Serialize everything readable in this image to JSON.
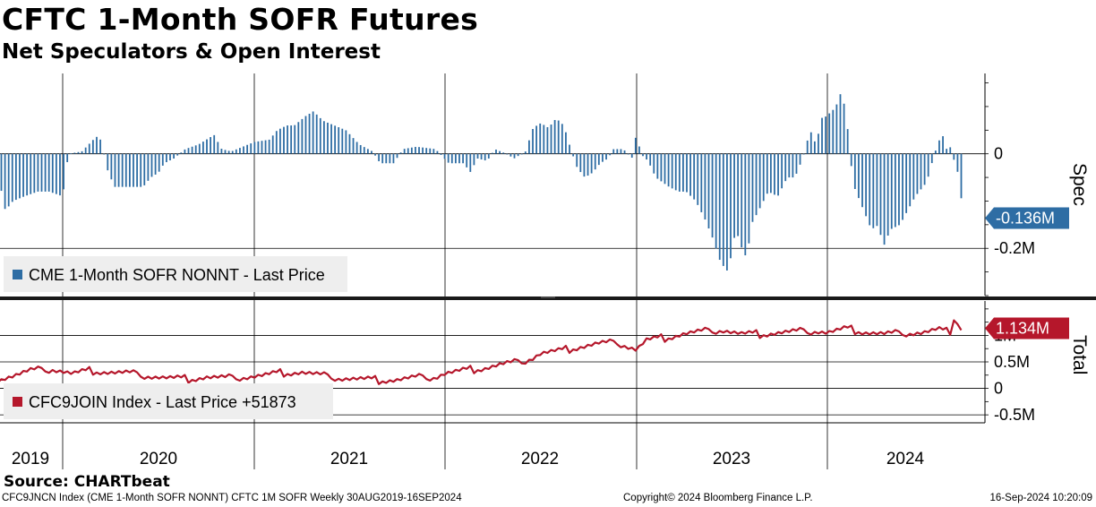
{
  "header": {
    "title": "CFTC 1-Month SOFR Futures",
    "subtitle": "Net Speculators & Open Interest"
  },
  "colors": {
    "spec_bar": "#2e6da4",
    "total_line": "#b5172b",
    "axis": "#000000",
    "legend_bg": "#eeeeee"
  },
  "source": "Source: CHARTbeat",
  "footer": {
    "left": "CFC9JNCN Index (CME 1-Month SOFR NONNT) CFTC 1M SOFR  Weekly 30AUG2019-16SEP2024",
    "middle": "Copyright© 2024 Bloomberg Finance L.P.",
    "right": "16-Sep-2024 10:20:09"
  },
  "chart_data": [
    {
      "type": "bar",
      "panel": "top",
      "axis_title": "Spec",
      "legend": "CME 1-Month SOFR NONNT - Last Price",
      "y_ticks": [
        {
          "value": 0,
          "label": "0"
        },
        {
          "value": -0.2,
          "label": "-0.2M"
        }
      ],
      "ylim": [
        -0.3,
        0.17
      ],
      "last_value_label": "-0.136M",
      "last_value": -0.136,
      "x_start": 2019.66,
      "x_end": 2024.71,
      "frequency": "weekly",
      "key_points": [
        [
          2019.66,
          -0.04
        ],
        [
          2019.7,
          -0.12
        ],
        [
          2019.74,
          -0.1
        ],
        [
          2019.8,
          -0.09
        ],
        [
          2019.87,
          -0.08
        ],
        [
          2019.93,
          -0.08
        ],
        [
          2020.0,
          -0.09
        ],
        [
          2020.03,
          0.0
        ],
        [
          2020.1,
          0.005
        ],
        [
          2020.16,
          0.03
        ],
        [
          2020.19,
          0.04
        ],
        [
          2020.21,
          0.01
        ],
        [
          2020.23,
          -0.03
        ],
        [
          2020.27,
          -0.07
        ],
        [
          2020.35,
          -0.07
        ],
        [
          2020.42,
          -0.07
        ],
        [
          2020.46,
          -0.05
        ],
        [
          2020.5,
          -0.04
        ],
        [
          2020.53,
          -0.02
        ],
        [
          2020.58,
          -0.01
        ],
        [
          2020.64,
          0.01
        ],
        [
          2020.71,
          0.02
        ],
        [
          2020.75,
          0.03
        ],
        [
          2020.79,
          0.04
        ],
        [
          2020.83,
          0.01
        ],
        [
          2020.88,
          0.005
        ],
        [
          2021.0,
          0.025
        ],
        [
          2021.08,
          0.03
        ],
        [
          2021.12,
          0.05
        ],
        [
          2021.17,
          0.06
        ],
        [
          2021.21,
          0.06
        ],
        [
          2021.27,
          0.08
        ],
        [
          2021.31,
          0.09
        ],
        [
          2021.36,
          0.07
        ],
        [
          2021.42,
          0.06
        ],
        [
          2021.48,
          0.05
        ],
        [
          2021.55,
          0.02
        ],
        [
          2021.62,
          0.005
        ],
        [
          2021.66,
          -0.02
        ],
        [
          2021.73,
          -0.02
        ],
        [
          2021.78,
          0.01
        ],
        [
          2021.85,
          0.015
        ],
        [
          2021.95,
          0.01
        ],
        [
          2022.02,
          -0.02
        ],
        [
          2022.06,
          -0.02
        ],
        [
          2022.1,
          -0.02
        ],
        [
          2022.13,
          -0.04
        ],
        [
          2022.17,
          -0.01
        ],
        [
          2022.22,
          -0.015
        ],
        [
          2022.26,
          0.01
        ],
        [
          2022.32,
          0.0
        ],
        [
          2022.36,
          -0.01
        ],
        [
          2022.42,
          0.005
        ],
        [
          2022.46,
          0.055
        ],
        [
          2022.5,
          0.065
        ],
        [
          2022.54,
          0.055
        ],
        [
          2022.58,
          0.075
        ],
        [
          2022.62,
          0.06
        ],
        [
          2022.66,
          0.005
        ],
        [
          2022.69,
          -0.03
        ],
        [
          2022.73,
          -0.05
        ],
        [
          2022.77,
          -0.04
        ],
        [
          2022.81,
          -0.02
        ],
        [
          2022.85,
          -0.01
        ],
        [
          2022.88,
          0.01
        ],
        [
          2022.93,
          0.01
        ],
        [
          2022.98,
          -0.01
        ],
        [
          2023.0,
          0.05
        ],
        [
          2023.02,
          0.0
        ],
        [
          2023.06,
          -0.015
        ],
        [
          2023.1,
          -0.05
        ],
        [
          2023.17,
          -0.07
        ],
        [
          2023.22,
          -0.08
        ],
        [
          2023.26,
          -0.08
        ],
        [
          2023.31,
          -0.1
        ],
        [
          2023.36,
          -0.14
        ],
        [
          2023.4,
          -0.18
        ],
        [
          2023.44,
          -0.23
        ],
        [
          2023.48,
          -0.25
        ],
        [
          2023.52,
          -0.16
        ],
        [
          2023.56,
          -0.21
        ],
        [
          2023.58,
          -0.22
        ],
        [
          2023.6,
          -0.15
        ],
        [
          2023.64,
          -0.12
        ],
        [
          2023.69,
          -0.08
        ],
        [
          2023.74,
          -0.09
        ],
        [
          2023.79,
          -0.05
        ],
        [
          2023.83,
          -0.05
        ],
        [
          2023.87,
          -0.01
        ],
        [
          2023.91,
          0.05
        ],
        [
          2023.94,
          0.02
        ],
        [
          2023.98,
          0.09
        ],
        [
          2024.0,
          0.07
        ],
        [
          2024.02,
          0.1
        ],
        [
          2024.04,
          0.085
        ],
        [
          2024.06,
          0.13
        ],
        [
          2024.08,
          0.12
        ],
        [
          2024.1,
          0.08
        ],
        [
          2024.12,
          -0.01
        ],
        [
          2024.14,
          -0.07
        ],
        [
          2024.19,
          -0.12
        ],
        [
          2024.23,
          -0.16
        ],
        [
          2024.27,
          -0.15
        ],
        [
          2024.29,
          -0.2
        ],
        [
          2024.33,
          -0.16
        ],
        [
          2024.38,
          -0.15
        ],
        [
          2024.42,
          -0.12
        ],
        [
          2024.46,
          -0.09
        ],
        [
          2024.52,
          -0.06
        ],
        [
          2024.56,
          0.0
        ],
        [
          2024.6,
          0.045
        ],
        [
          2024.62,
          0.01
        ],
        [
          2024.65,
          0.015
        ],
        [
          2024.66,
          -0.01
        ],
        [
          2024.69,
          -0.05
        ],
        [
          2024.71,
          -0.136
        ]
      ]
    },
    {
      "type": "line",
      "panel": "bottom",
      "axis_title": "Total",
      "legend": "CFC9JOIN Index - Last Price +51873",
      "y_ticks": [
        {
          "value": 1.0,
          "label": "1M"
        },
        {
          "value": 0.5,
          "label": "0.5M"
        },
        {
          "value": 0,
          "label": "0"
        },
        {
          "value": -0.5,
          "label": "-0.5M"
        }
      ],
      "ylim": [
        -0.65,
        1.65
      ],
      "last_value_label": "1.134M",
      "last_value": 1.134,
      "x_start": 2019.66,
      "x_end": 2024.71,
      "frequency": "weekly",
      "key_points": [
        [
          2019.66,
          0.18
        ],
        [
          2019.75,
          0.25
        ],
        [
          2019.83,
          0.33
        ],
        [
          2019.95,
          0.36
        ],
        [
          2020.0,
          0.32
        ],
        [
          2020.05,
          0.27
        ],
        [
          2020.15,
          0.33
        ],
        [
          2020.25,
          0.3
        ],
        [
          2020.35,
          0.28
        ],
        [
          2020.45,
          0.23
        ],
        [
          2020.55,
          0.19
        ],
        [
          2020.65,
          0.17
        ],
        [
          2020.75,
          0.21
        ],
        [
          2020.85,
          0.19
        ],
        [
          2020.95,
          0.21
        ],
        [
          2021.05,
          0.24
        ],
        [
          2021.15,
          0.29
        ],
        [
          2021.25,
          0.3
        ],
        [
          2021.35,
          0.24
        ],
        [
          2021.45,
          0.19
        ],
        [
          2021.55,
          0.17
        ],
        [
          2021.65,
          0.15
        ],
        [
          2021.75,
          0.16
        ],
        [
          2021.85,
          0.2
        ],
        [
          2021.95,
          0.21
        ],
        [
          2022.0,
          0.28
        ],
        [
          2022.1,
          0.33
        ],
        [
          2022.2,
          0.38
        ],
        [
          2022.3,
          0.45
        ],
        [
          2022.4,
          0.5
        ],
        [
          2022.46,
          0.58
        ],
        [
          2022.5,
          0.66
        ],
        [
          2022.6,
          0.7
        ],
        [
          2022.7,
          0.78
        ],
        [
          2022.8,
          0.84
        ],
        [
          2022.9,
          0.86
        ],
        [
          2023.0,
          0.73
        ],
        [
          2023.05,
          0.9
        ],
        [
          2023.15,
          0.95
        ],
        [
          2023.25,
          1.03
        ],
        [
          2023.35,
          1.07
        ],
        [
          2023.45,
          1.1
        ],
        [
          2023.55,
          1.02
        ],
        [
          2023.65,
          1.02
        ],
        [
          2023.75,
          1.05
        ],
        [
          2023.85,
          1.07
        ],
        [
          2023.95,
          1.08
        ],
        [
          2024.0,
          1.05
        ],
        [
          2024.1,
          1.12
        ],
        [
          2024.2,
          1.06
        ],
        [
          2024.3,
          1.02
        ],
        [
          2024.4,
          1.04
        ],
        [
          2024.5,
          1.05
        ],
        [
          2024.58,
          1.1
        ],
        [
          2024.64,
          1.05
        ],
        [
          2024.67,
          1.4
        ],
        [
          2024.69,
          1.06
        ],
        [
          2024.71,
          1.134
        ]
      ]
    }
  ],
  "x_axis": {
    "labels": [
      {
        "year": 2019.75,
        "label": "2019"
      },
      {
        "year": 2020.5,
        "label": "2020"
      },
      {
        "year": 2021.5,
        "label": "2021"
      },
      {
        "year": 2022.5,
        "label": "2022"
      },
      {
        "year": 2023.5,
        "label": "2023"
      },
      {
        "year": 2024.5,
        "label": "2024"
      }
    ],
    "year_lines": [
      2020,
      2021,
      2022,
      2023,
      2024
    ]
  }
}
